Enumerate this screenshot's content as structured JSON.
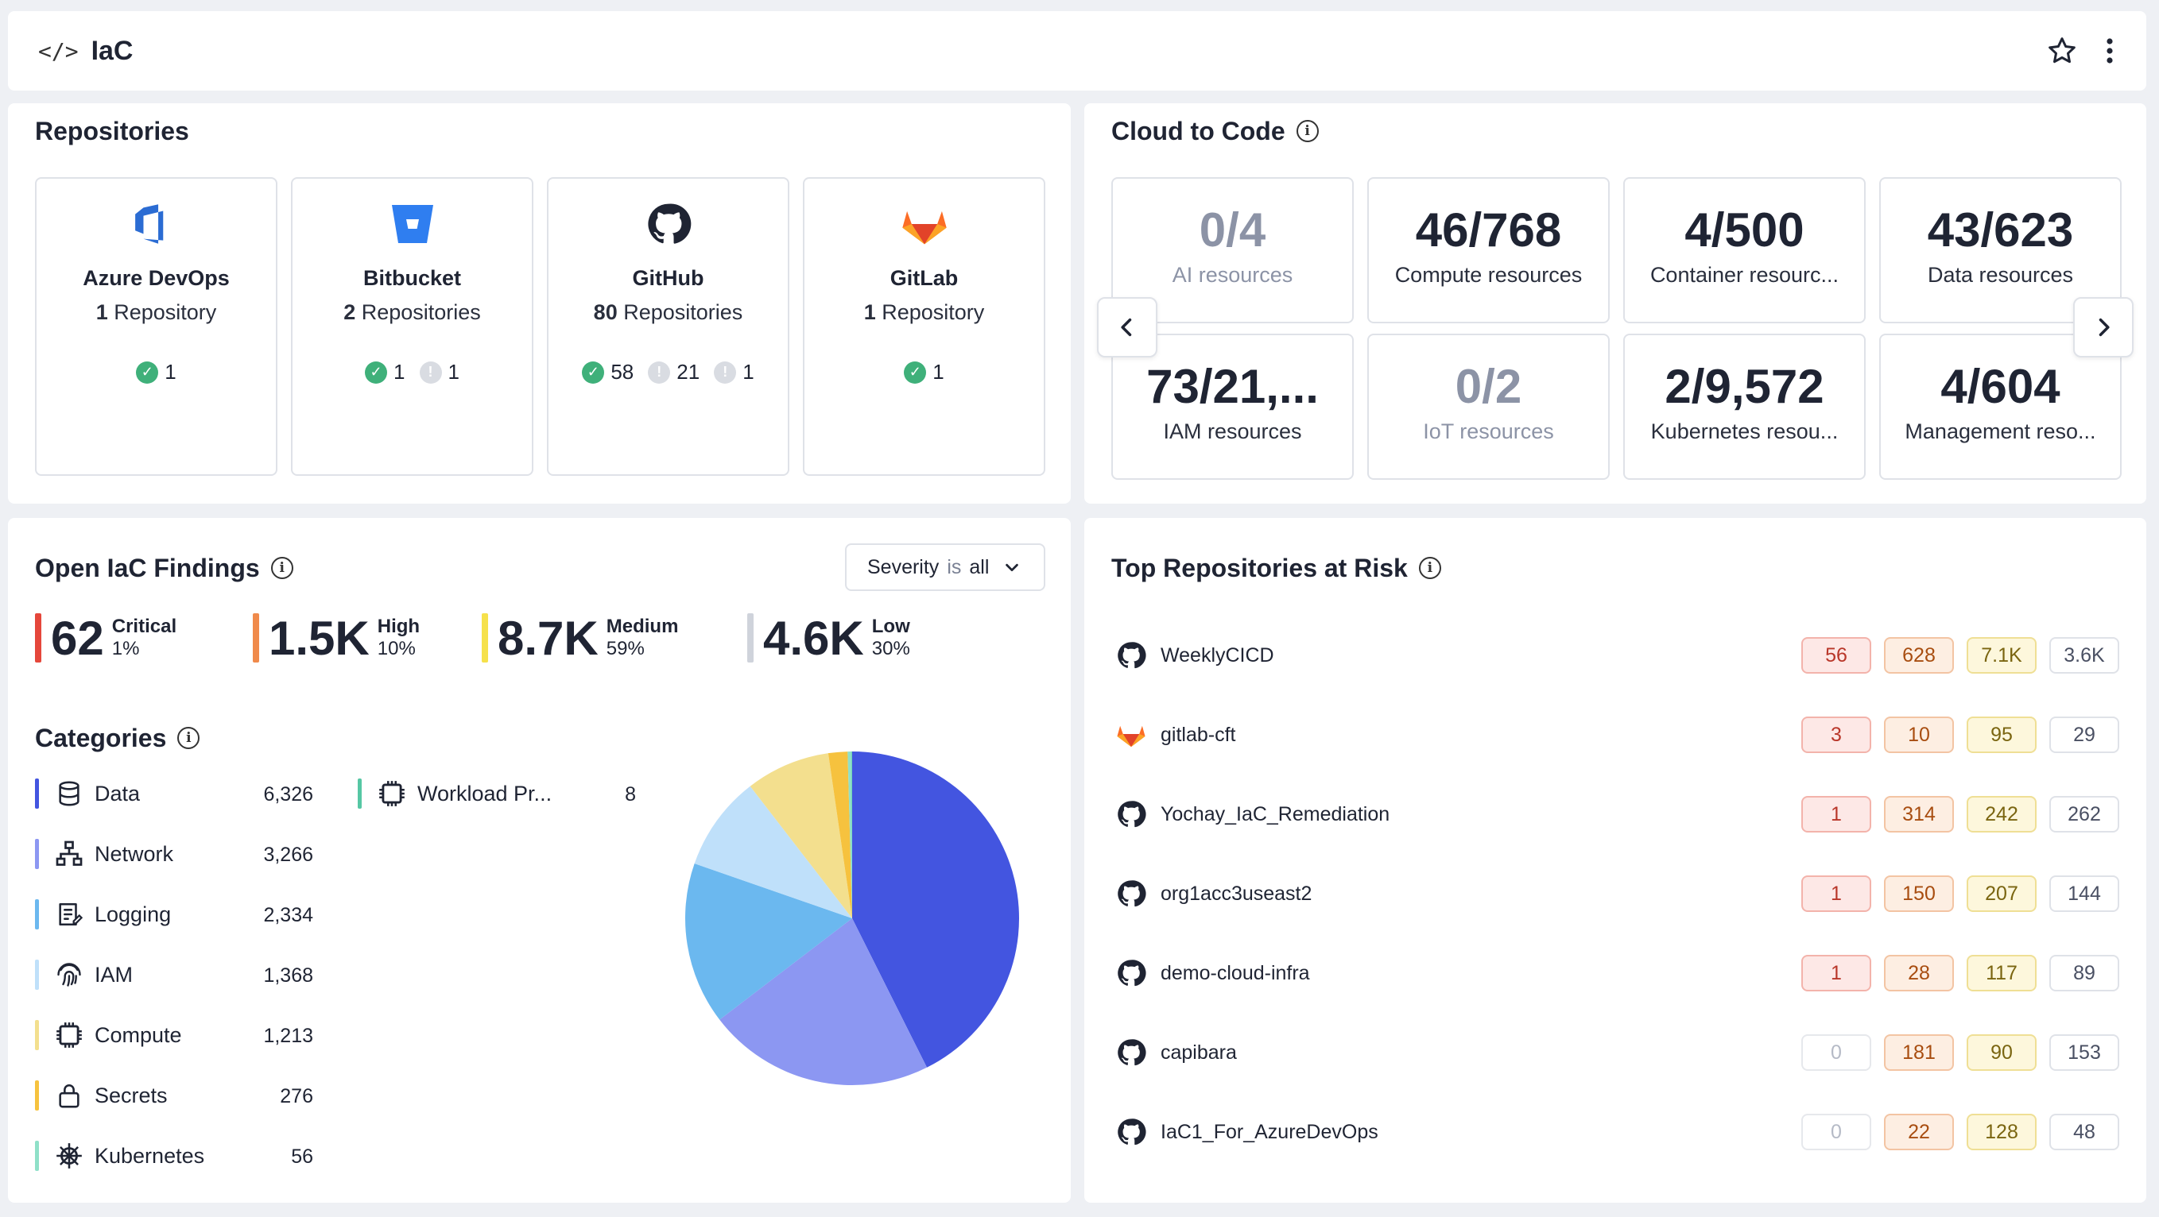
{
  "header": {
    "title": "IaC"
  },
  "repositories": {
    "title": "Repositories",
    "cards": [
      {
        "name": "Azure DevOps",
        "count_num": "1",
        "count_text": "Repository",
        "ok": "1",
        "icon": "azure-devops-icon"
      },
      {
        "name": "Bitbucket",
        "count_num": "2",
        "count_text": "Repositories",
        "ok": "1",
        "warn": [
          "1"
        ],
        "icon": "bitbucket-icon"
      },
      {
        "name": "GitHub",
        "count_num": "80",
        "count_text": "Repositories",
        "ok": "58",
        "warn": [
          "21",
          "1"
        ],
        "icon": "github-icon"
      },
      {
        "name": "GitLab",
        "count_num": "1",
        "count_text": "Repository",
        "ok": "1",
        "icon": "gitlab-icon"
      }
    ]
  },
  "cloud_to_code": {
    "title": "Cloud to Code",
    "cards": [
      {
        "value": "0/4",
        "label": "AI resources",
        "muted": true
      },
      {
        "value": "46/768",
        "label": "Compute resources"
      },
      {
        "value": "4/500",
        "label": "Container resourc..."
      },
      {
        "value": "43/623",
        "label": "Data resources"
      },
      {
        "value": "73/21,...",
        "label": "IAM resources"
      },
      {
        "value": "0/2",
        "label": "IoT resources",
        "muted": true
      },
      {
        "value": "2/9,572",
        "label": "Kubernetes resou..."
      },
      {
        "value": "4/604",
        "label": "Management reso..."
      }
    ]
  },
  "findings": {
    "title": "Open IaC Findings",
    "filter": {
      "field": "Severity",
      "op": "is",
      "value": "all"
    },
    "severities": [
      {
        "num": "62",
        "label": "Critical",
        "pct": "1%",
        "color": "#e5473b"
      },
      {
        "num": "1.5K",
        "label": "High",
        "pct": "10%",
        "color": "#f08a4b"
      },
      {
        "num": "8.7K",
        "label": "Medium",
        "pct": "59%",
        "color": "#f6e14b"
      },
      {
        "num": "4.6K",
        "label": "Low",
        "pct": "30%",
        "color": "#cfd3db"
      }
    ],
    "categories_title": "Categories",
    "categories": [
      {
        "name": "Data",
        "value": "6,326",
        "color": "#4355e0",
        "icon": "database-icon"
      },
      {
        "name": "Network",
        "value": "3,266",
        "color": "#8c97f2",
        "icon": "network-icon"
      },
      {
        "name": "Logging",
        "value": "2,334",
        "color": "#6bb8ef",
        "icon": "logging-icon"
      },
      {
        "name": "IAM",
        "value": "1,368",
        "color": "#bfe0fa",
        "icon": "fingerprint-icon"
      },
      {
        "name": "Compute",
        "value": "1,213",
        "color": "#f3df8e",
        "icon": "chip-icon"
      },
      {
        "name": "Secrets",
        "value": "276",
        "color": "#f6c23e",
        "icon": "lock-icon"
      },
      {
        "name": "Kubernetes",
        "value": "56",
        "color": "#8fe0c8",
        "icon": "kubernetes-icon"
      },
      {
        "name": "Workload Pr...",
        "value": "8",
        "color": "#56c7a4",
        "icon": "chip-icon"
      }
    ]
  },
  "top_risk": {
    "title": "Top Repositories at Risk",
    "rows": [
      {
        "name": "WeeklyCICD",
        "icon": "github-icon",
        "crit": "56",
        "high": "628",
        "med": "7.1K",
        "low": "3.6K"
      },
      {
        "name": "gitlab-cft",
        "icon": "gitlab-icon",
        "crit": "3",
        "high": "10",
        "med": "95",
        "low": "29"
      },
      {
        "name": "Yochay_IaC_Remediation",
        "icon": "github-icon",
        "crit": "1",
        "high": "314",
        "med": "242",
        "low": "262"
      },
      {
        "name": "org1acc3useast2",
        "icon": "github-icon",
        "crit": "1",
        "high": "150",
        "med": "207",
        "low": "144"
      },
      {
        "name": "demo-cloud-infra",
        "icon": "github-icon",
        "crit": "1",
        "high": "28",
        "med": "117",
        "low": "89"
      },
      {
        "name": "capibara",
        "icon": "github-icon",
        "crit": "0",
        "high": "181",
        "med": "90",
        "low": "153"
      },
      {
        "name": "IaC1_For_AzureDevOps",
        "icon": "github-icon",
        "crit": "0",
        "high": "22",
        "med": "128",
        "low": "48"
      }
    ]
  }
}
